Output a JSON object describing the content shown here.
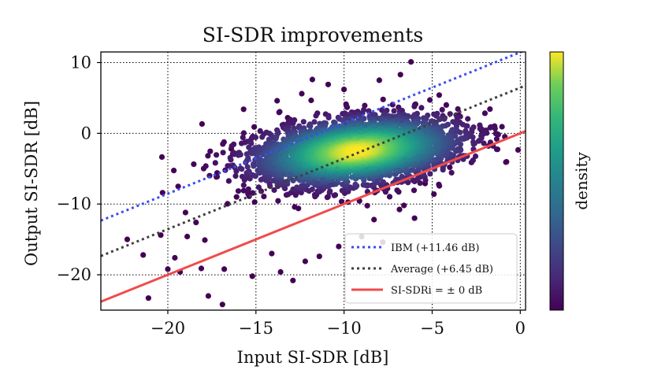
{
  "chart_data": {
    "type": "scatter",
    "title": "SI-SDR improvements",
    "xlabel": "Input SI-SDR [dB]",
    "ylabel": "Output SI-SDR [dB]",
    "xlim": [
      -23.8,
      0.3
    ],
    "ylim": [
      -25,
      11.5
    ],
    "xticks": [
      -20,
      -15,
      -10,
      -5,
      0
    ],
    "yticks": [
      -20,
      -10,
      0,
      10
    ],
    "xtick_labels": [
      "−20",
      "−15",
      "−10",
      "−5",
      "0"
    ],
    "ytick_labels": [
      "−20",
      "−10",
      "0",
      "10"
    ],
    "grid": true,
    "legend_placement": "lower-right",
    "colorbar_label": "density",
    "colormap": "viridis",
    "scatter_density": {
      "center": [
        -9.3,
        -2.5
      ],
      "sd_major": 3.0,
      "sd_minor": 2.1,
      "orientation_deg": 28,
      "core_peak": [
        -8.8,
        -2.0
      ],
      "outlier_points": [
        [
          -22.3,
          -15.0
        ],
        [
          -21.4,
          -17.2
        ],
        [
          -20.0,
          -19.2
        ],
        [
          -19.6,
          -17.6
        ],
        [
          -20.3,
          -8.4
        ],
        [
          -19.3,
          -19.6
        ],
        [
          -18.1,
          -19.1
        ],
        [
          -17.7,
          -23.0
        ],
        [
          -16.9,
          -24.2
        ],
        [
          -21.1,
          -23.3
        ],
        [
          -19.0,
          -11.2
        ],
        [
          -18.4,
          -12.6
        ],
        [
          -17.2,
          -5.6
        ],
        [
          -16.4,
          -2.2
        ],
        [
          -15.1,
          0.9
        ],
        [
          -15.7,
          3.4
        ],
        [
          -13.8,
          4.6
        ],
        [
          -12.4,
          5.6
        ],
        [
          -10.9,
          6.9
        ],
        [
          -10.0,
          6.2
        ],
        [
          -4.6,
          5.4
        ],
        [
          -4.2,
          4.0
        ],
        [
          -3.6,
          -1.3
        ],
        [
          -4.0,
          -4.8
        ],
        [
          -5.4,
          -7.1
        ],
        [
          -6.6,
          -10.2
        ],
        [
          -8.3,
          -12.2
        ],
        [
          -9.0,
          -14.6
        ],
        [
          -10.3,
          -16.0
        ],
        [
          -12.2,
          -18.1
        ],
        [
          -13.6,
          -19.6
        ],
        [
          -15.2,
          -20.2
        ],
        [
          -16.8,
          -19.2
        ],
        [
          -17.9,
          -15.1
        ],
        [
          -14.1,
          -17.0
        ],
        [
          -6.2,
          10.1
        ],
        [
          -8.0,
          7.5
        ],
        [
          -6.8,
          8.3
        ],
        [
          -3.5,
          2.6
        ],
        [
          -7.8,
          -15.4
        ],
        [
          -11.4,
          -17.4
        ],
        [
          -13.2,
          2.2
        ],
        [
          -16.1,
          -9.0
        ],
        [
          -18.9,
          -14.6
        ],
        [
          -6.0,
          -12.0
        ],
        [
          -4.9,
          -8.6
        ],
        [
          -12.9,
          -20.8
        ],
        [
          -11.8,
          7.6
        ],
        [
          -2.2,
          0.4
        ],
        [
          -20.4,
          -14.4
        ]
      ]
    },
    "series": [
      {
        "name": "IBM (+11.46 dB)",
        "kind": "line",
        "style": "dotted",
        "color": "#3d4cf0",
        "intercept": 11.46,
        "slope": 1
      },
      {
        "name": "Average (+6.45 dB)",
        "kind": "line",
        "style": "dotted",
        "color": "#404040",
        "intercept": 6.45,
        "slope": 1
      },
      {
        "name": "SI-SDRi = ± 0 dB",
        "kind": "line",
        "style": "solid",
        "color": "#f04b4b",
        "intercept": 0,
        "slope": 1
      }
    ]
  }
}
